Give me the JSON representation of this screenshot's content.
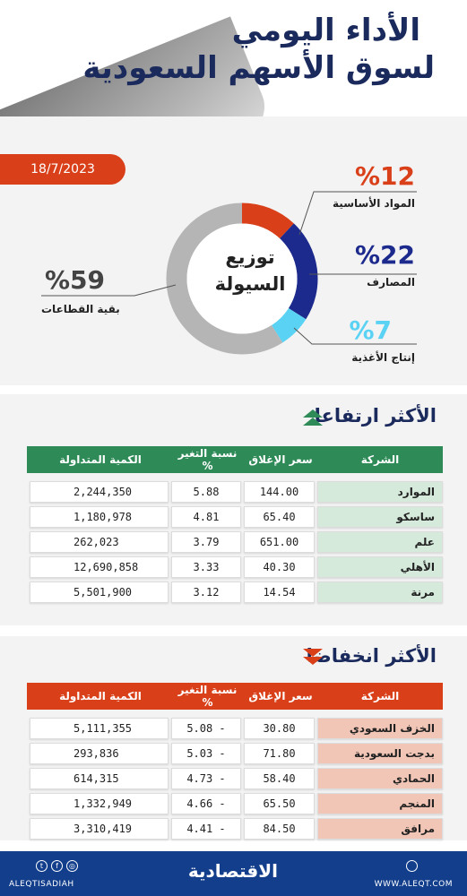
{
  "header": {
    "title_line1": "الأداء اليومي",
    "title_line2": "لسوق الأسهم السعودية",
    "date": "18/7/2023"
  },
  "liquidity": {
    "center_line1": "توزيع",
    "center_line2": "السيولة",
    "segments": [
      {
        "pct_label": "%12",
        "name": "المواد الأساسية",
        "value": 12,
        "color": "#d9401a"
      },
      {
        "pct_label": "%22",
        "name": "المصارف",
        "value": 22,
        "color": "#1b2a8c"
      },
      {
        "pct_label": "%7",
        "name": "إنتاج الأغذية",
        "value": 7,
        "color": "#5ad2f4"
      },
      {
        "pct_label": "%59",
        "name": "بقية القطاعات",
        "value": 59,
        "color": "#b5b5b5"
      }
    ]
  },
  "columns": {
    "company": "الشركة",
    "close": "سعر الإغلاق",
    "change": "نسبة التغير %",
    "volume": "الكمية المتداولة"
  },
  "gainers": {
    "title": "الأكثر ارتفاعا",
    "header_color": "#2e8b57",
    "name_cell_color": "#d5eadb",
    "rows": [
      {
        "company": "الموارد",
        "close": "144.00",
        "change": "5.88",
        "volume": "2,244,350"
      },
      {
        "company": "ساسكو",
        "close": "65.40",
        "change": "4.81",
        "volume": "1,180,978"
      },
      {
        "company": "علم",
        "close": "651.00",
        "change": "3.79",
        "volume": "262,023"
      },
      {
        "company": "الأهلي",
        "close": "40.30",
        "change": "3.33",
        "volume": "12,690,858"
      },
      {
        "company": "مرنة",
        "close": "14.54",
        "change": "3.12",
        "volume": "5,501,900"
      }
    ]
  },
  "losers": {
    "title": "الأكثر انخفاضا",
    "header_color": "#d9401a",
    "name_cell_color": "#f2c6b6",
    "rows": [
      {
        "company": "الخزف السعودي",
        "close": "30.80",
        "change": "5.08 -",
        "volume": "5,111,355"
      },
      {
        "company": "بدجت السعودية",
        "close": "71.80",
        "change": "5.03 -",
        "volume": "293,836"
      },
      {
        "company": "الحمادي",
        "close": "58.40",
        "change": "4.73 -",
        "volume": "614,315"
      },
      {
        "company": "المنجم",
        "close": "65.50",
        "change": "4.66 -",
        "volume": "1,332,949"
      },
      {
        "company": "مرافق",
        "close": "84.50",
        "change": "4.41 -",
        "volume": "3,310,419"
      }
    ]
  },
  "footer": {
    "logo": "الاقتصادية",
    "handle": "ALEQTISADIAH",
    "site": "WWW.ALEQT.COM"
  },
  "chart_data": {
    "type": "pie",
    "title": "توزيع السيولة",
    "categories": [
      "المواد الأساسية",
      "المصارف",
      "إنتاج الأغذية",
      "بقية القطاعات"
    ],
    "values": [
      12,
      22,
      7,
      59
    ],
    "legend_placement": "around"
  }
}
